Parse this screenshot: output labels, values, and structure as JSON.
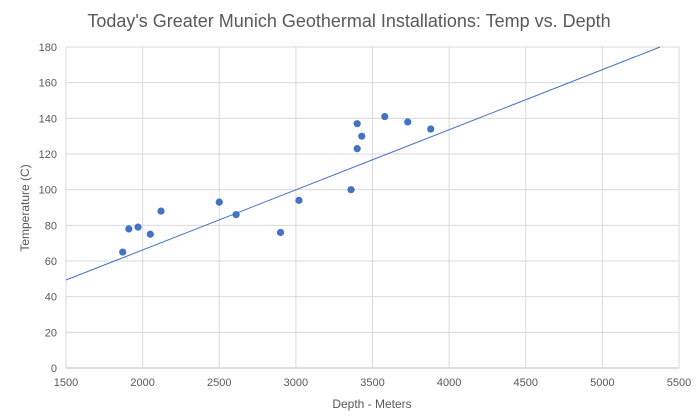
{
  "chart_data": {
    "type": "scatter",
    "title": "Today's Greater Munich Geothermal Installations: Temp vs. Depth",
    "xlabel": "Depth - Meters",
    "ylabel": "Temperature (C)",
    "xlim": [
      1500,
      5500
    ],
    "ylim": [
      0,
      180
    ],
    "xticks": [
      1500,
      2000,
      2500,
      3000,
      3500,
      4000,
      4500,
      5000,
      5500
    ],
    "yticks": [
      0,
      20,
      40,
      60,
      80,
      100,
      120,
      140,
      160,
      180
    ],
    "grid": true,
    "legend": "none",
    "marker_color": "#4472C4",
    "trendline": {
      "type": "linear",
      "color": "#4472C4",
      "slope": 0.0337,
      "intercept": -1.2
    },
    "points": [
      {
        "x": 1870,
        "y": 65
      },
      {
        "x": 1910,
        "y": 78
      },
      {
        "x": 1970,
        "y": 79
      },
      {
        "x": 2050,
        "y": 75
      },
      {
        "x": 2120,
        "y": 88
      },
      {
        "x": 2500,
        "y": 93
      },
      {
        "x": 2610,
        "y": 86
      },
      {
        "x": 2900,
        "y": 76
      },
      {
        "x": 3020,
        "y": 94
      },
      {
        "x": 3360,
        "y": 100
      },
      {
        "x": 3400,
        "y": 137
      },
      {
        "x": 3400,
        "y": 123
      },
      {
        "x": 3430,
        "y": 130
      },
      {
        "x": 3580,
        "y": 141
      },
      {
        "x": 3730,
        "y": 138
      },
      {
        "x": 3880,
        "y": 134
      }
    ]
  }
}
